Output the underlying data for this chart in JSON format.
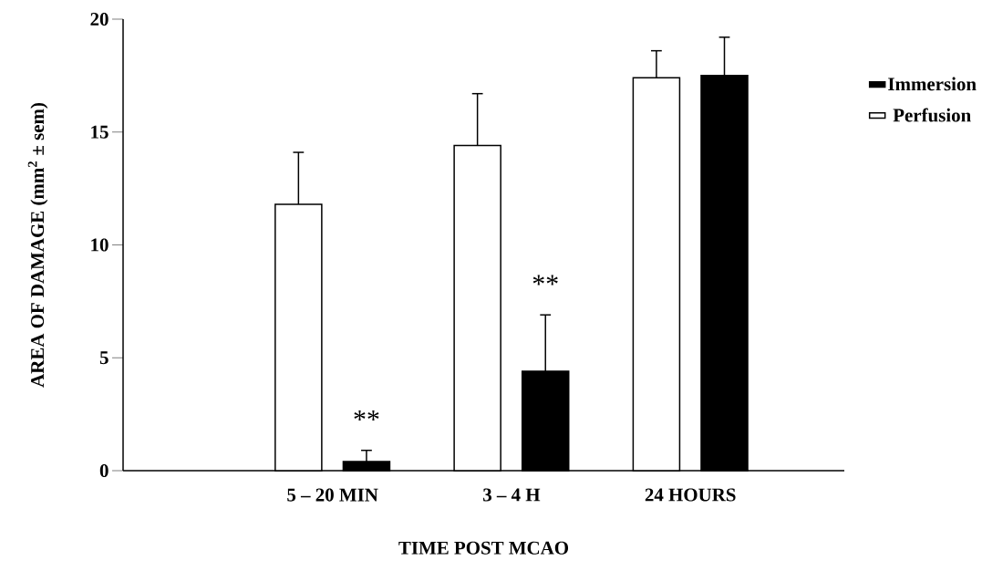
{
  "chart_data": {
    "type": "bar",
    "xlabel": "TIME POST MCAO",
    "ylabel": "AREA OF DAMAGE (mm$^{2}$ ± sem)",
    "categories": [
      "5 – 20 MIN",
      "3 – 4 H",
      "24 HOURS"
    ],
    "series": [
      {
        "name": "Perfusion",
        "color": "#ffffff",
        "values": [
          11.8,
          14.4,
          17.4
        ],
        "errors": [
          [
            11.8,
            14.1
          ],
          [
            14.4,
            16.7
          ],
          [
            17.4,
            18.6
          ]
        ]
      },
      {
        "name": "Immersion",
        "color": "#000000",
        "values": [
          0.4,
          4.4,
          17.5
        ],
        "errors": [
          [
            0.4,
            0.9
          ],
          [
            4.4,
            6.9
          ],
          [
            17.5,
            19.2
          ]
        ]
      }
    ],
    "ylim": [
      0,
      20
    ],
    "yticks": [
      0,
      5,
      10,
      15,
      20
    ],
    "legend": "right",
    "annotations": [
      "**",
      "**"
    ]
  }
}
